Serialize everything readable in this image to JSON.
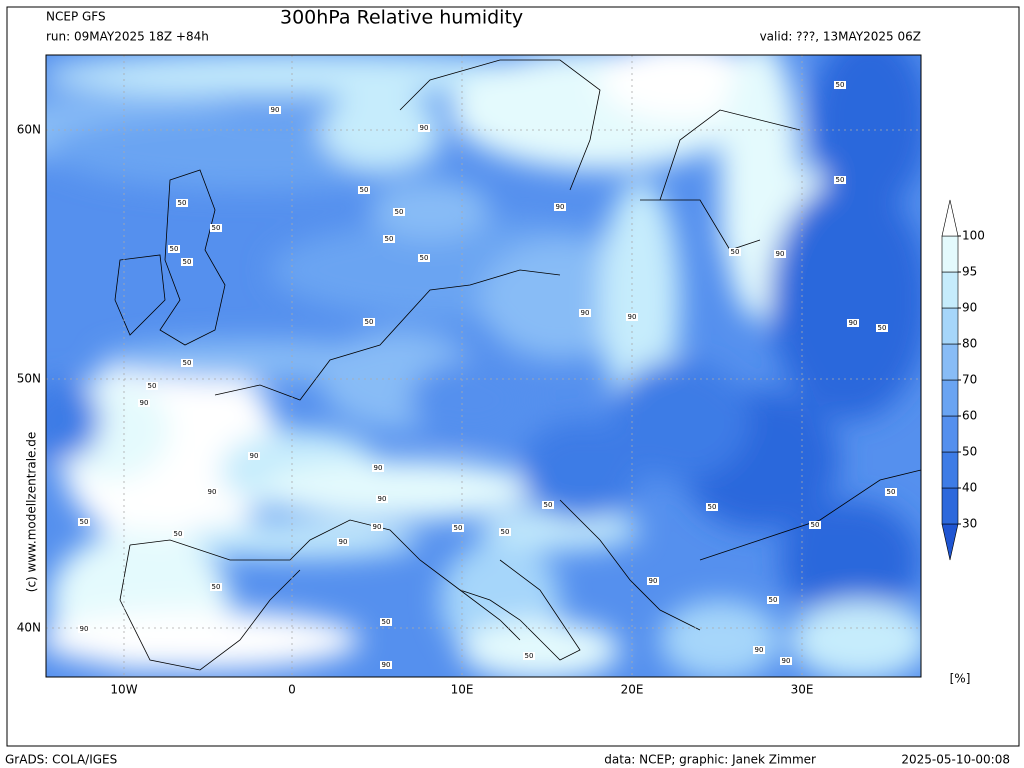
{
  "header": {
    "model": "NCEP GFS",
    "title": "300hPa Relative humidity",
    "run": "run: 09MAY2025 18Z +84h",
    "valid": "valid: ???, 13MAY2025 06Z"
  },
  "map": {
    "lat_labels": [
      "60N",
      "50N",
      "40N"
    ],
    "lon_labels": [
      "10W",
      "0",
      "10E",
      "20E",
      "30E"
    ],
    "contour_labels": [
      90,
      90,
      50,
      50,
      50,
      50,
      50,
      50,
      50,
      50,
      90,
      50,
      90,
      90,
      50,
      50,
      90,
      90,
      90,
      90,
      90,
      90,
      50,
      50,
      90,
      50,
      50,
      50,
      50,
      50,
      50,
      90,
      50,
      50,
      90,
      50,
      90,
      90,
      90,
      50,
      50,
      50,
      50,
      90,
      90,
      50
    ]
  },
  "colorbar": {
    "levels": [
      30,
      40,
      50,
      60,
      70,
      80,
      90,
      95,
      100
    ],
    "colors": [
      "#1f55d2",
      "#2c68dc",
      "#3e7ce6",
      "#5590ee",
      "#6aa4f2",
      "#88bcf6",
      "#a6d6fa",
      "#c6ecfc",
      "#e4fafd",
      "#ffffff"
    ],
    "unit": "[%]"
  },
  "side_text": "(c) www.modellzentrale.de",
  "footer": {
    "left": "GrADS: COLA/IGES",
    "center": "data: NCEP; graphic: Janek Zimmer",
    "right": "2025-05-10-00:08"
  }
}
